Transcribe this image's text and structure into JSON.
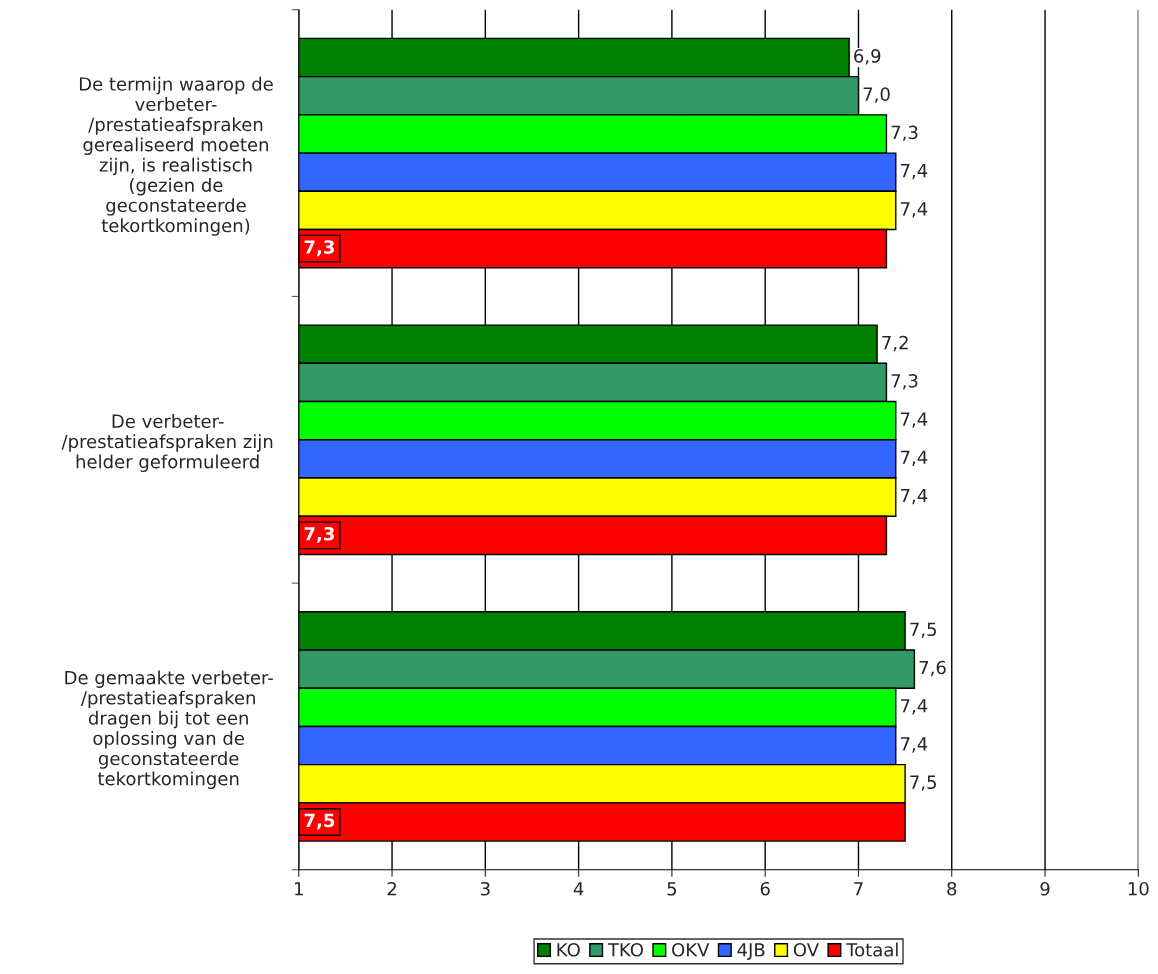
{
  "chart_data": {
    "type": "bar",
    "orientation": "horizontal",
    "categories": [
      "De termijn waarop de\nverbeter-\n/prestatieafspraken\ngerealiseerd moeten\nzijn, is realistisch\n(gezien de\ngeconstateerde\ntekortkomingen)",
      "De verbeter-\n/prestatieafspraken zijn\nhelder geformuleerd",
      "De gemaakte verbeter-\n/prestatieafspraken\ndragen bij tot een\noplossing van de\ngeconstateerde\ntekortkomingen"
    ],
    "series": [
      {
        "name": "KO",
        "color": "#008000",
        "values": [
          6.9,
          7.2,
          7.5
        ],
        "value_labels": [
          "6,9",
          "7,2",
          "7,5"
        ]
      },
      {
        "name": "TKO",
        "color": "#339966",
        "values": [
          7.0,
          7.3,
          7.6
        ],
        "value_labels": [
          "7,0",
          "7,3",
          "7,6"
        ]
      },
      {
        "name": "OKV",
        "color": "#00ff00",
        "values": [
          7.3,
          7.4,
          7.4
        ],
        "value_labels": [
          "7,3",
          "7,4",
          "7,4"
        ]
      },
      {
        "name": "4JB",
        "color": "#3366ff",
        "values": [
          7.4,
          7.4,
          7.4
        ],
        "value_labels": [
          "7,4",
          "7,4",
          "7,4"
        ]
      },
      {
        "name": "OV",
        "color": "#ffff00",
        "values": [
          7.4,
          7.4,
          7.5
        ],
        "value_labels": [
          "7,4",
          "7,4",
          "7,5"
        ]
      },
      {
        "name": "Totaal",
        "color": "#ff0000",
        "values": [
          7.3,
          7.3,
          7.5
        ],
        "value_labels": [
          "7,3",
          "7,3",
          "7,5"
        ]
      }
    ],
    "xlim": [
      1,
      10
    ],
    "xticks": [
      1,
      2,
      3,
      4,
      5,
      6,
      7,
      8,
      9,
      10
    ],
    "grid": "x",
    "legend": "bottom"
  }
}
